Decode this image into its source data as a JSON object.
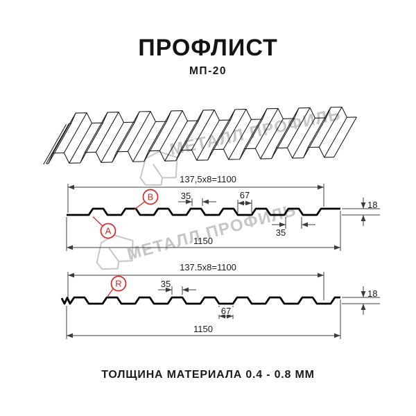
{
  "header": {
    "title": "ПРОФЛИСТ",
    "subtitle": "МП-20"
  },
  "footer": {
    "material_thickness": "ТОЛЩИНА МАТЕРИАЛА 0.4 - 0.8 ММ"
  },
  "brand": {
    "watermark_text": "МЕТАЛЛ ПРОФИЛЬ"
  },
  "colors": {
    "accent_red": "#e02424",
    "drawing_line": "#000000",
    "thin_line": "#3c3c3c",
    "watermark": "#c6c6c6"
  },
  "profile_front": {
    "coverage_formula": "137,5x8=1100",
    "overall_width": "1150",
    "rib_top_width": "35",
    "valley_width": "67",
    "profile_height": "18",
    "rib_bottom_width": "35",
    "side_label_a": "A",
    "side_label_b": "B"
  },
  "profile_reverse": {
    "coverage_formula": "137.5x8=1100",
    "overall_width": "1150",
    "rib_top_width": "35",
    "valley_width": "67",
    "profile_height": "18",
    "side_label_r": "R"
  }
}
